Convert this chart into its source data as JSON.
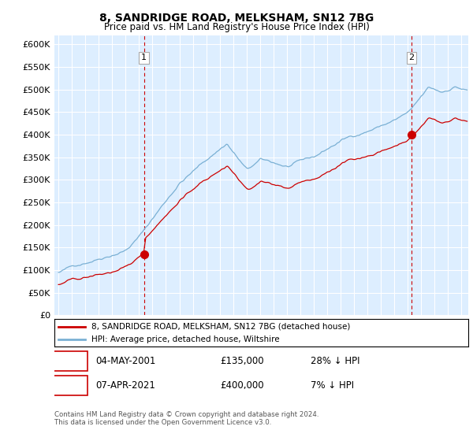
{
  "title1": "8, SANDRIDGE ROAD, MELKSHAM, SN12 7BG",
  "title2": "Price paid vs. HM Land Registry's House Price Index (HPI)",
  "legend1": "8, SANDRIDGE ROAD, MELKSHAM, SN12 7BG (detached house)",
  "legend2": "HPI: Average price, detached house, Wiltshire",
  "footnote": "Contains HM Land Registry data © Crown copyright and database right 2024.\nThis data is licensed under the Open Government Licence v3.0.",
  "sale1_date": "04-MAY-2001",
  "sale1_price": "£135,000",
  "sale1_hpi": "28% ↓ HPI",
  "sale2_date": "07-APR-2021",
  "sale2_price": "£400,000",
  "sale2_hpi": "7% ↓ HPI",
  "sale1_year": 2001.37,
  "sale1_value": 135000,
  "sale2_year": 2021.27,
  "sale2_value": 400000,
  "red_color": "#cc0000",
  "blue_color": "#7ab0d4",
  "bg_plot_color": "#ddeeff",
  "background_color": "#ffffff",
  "grid_color": "#ffffff",
  "ylim_min": 0,
  "ylim_max": 620000,
  "xlim_min": 1994.7,
  "xlim_max": 2025.5
}
